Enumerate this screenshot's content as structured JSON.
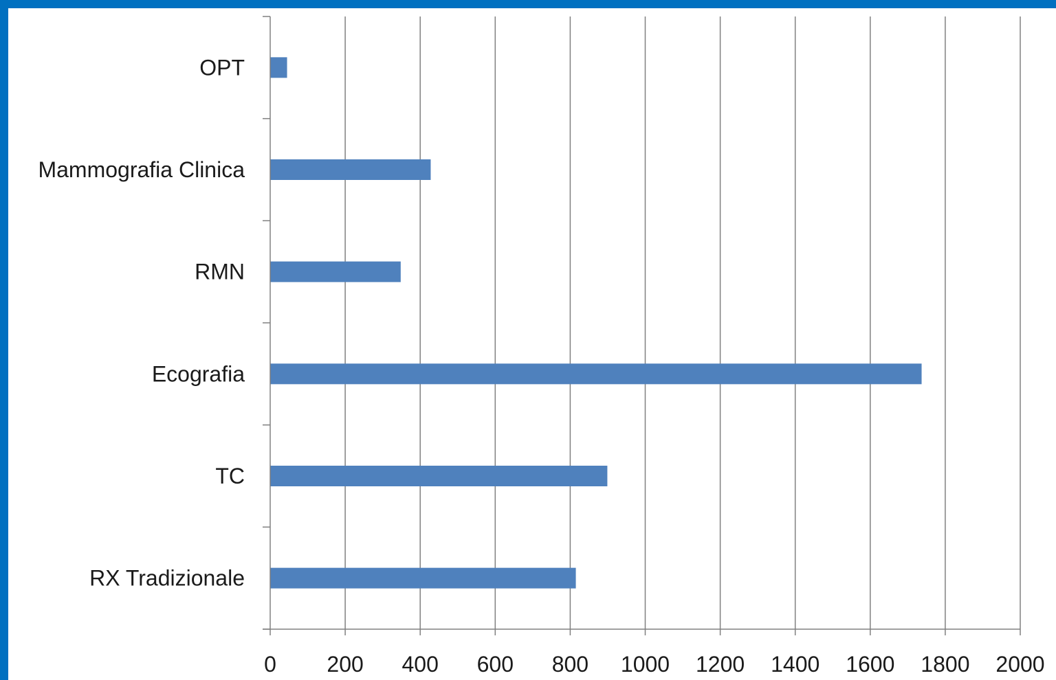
{
  "chart_data": {
    "type": "bar",
    "orientation": "horizontal",
    "categories": [
      "OPT",
      "Mammografia Clinica",
      "RMN",
      "Ecografia",
      "TC",
      "RX Tradizionale"
    ],
    "values": [
      45,
      428,
      348,
      1737,
      899,
      815
    ],
    "xlim": [
      0,
      2000
    ],
    "xticks": [
      0,
      200,
      400,
      600,
      800,
      1000,
      1200,
      1400,
      1600,
      1800,
      2000
    ],
    "grid": "vertical",
    "legend": "none",
    "title": "",
    "xlabel": "",
    "ylabel": ""
  },
  "colors": {
    "bar": "#4F81BD",
    "border": "#0070C0",
    "grid": "#808080",
    "axis": "#808080"
  }
}
